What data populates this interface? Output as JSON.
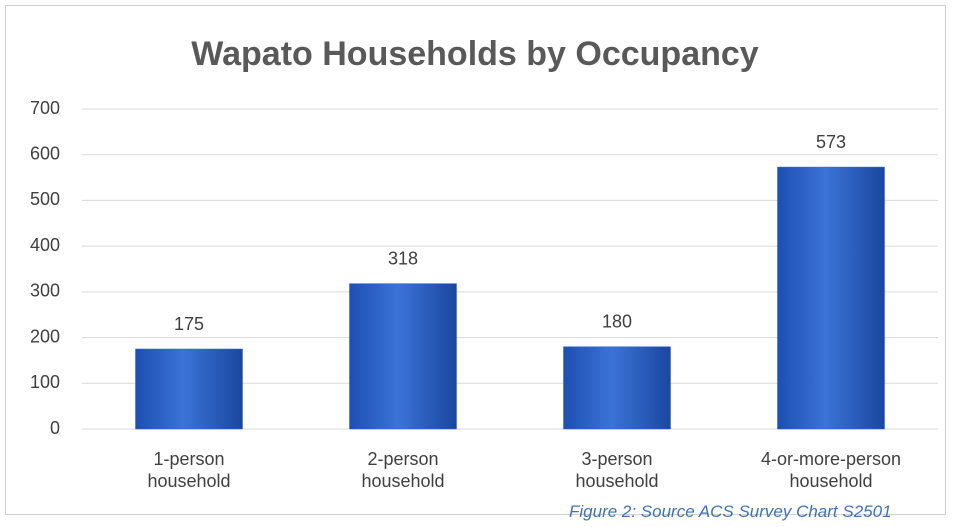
{
  "chart_data": {
    "type": "bar",
    "title": "Wapato Households by Occupancy",
    "categories": [
      "1-person household",
      "2-person household",
      "3-person household",
      "4-or-more-person household"
    ],
    "values": [
      175,
      318,
      180,
      573
    ],
    "color": "#2f63c9",
    "ylim": [
      0,
      700
    ],
    "yticks": [
      0,
      100,
      200,
      300,
      400,
      500,
      600,
      700
    ],
    "grid": true,
    "caption": "Figure 2: Source ACS Survey Chart S2501"
  }
}
